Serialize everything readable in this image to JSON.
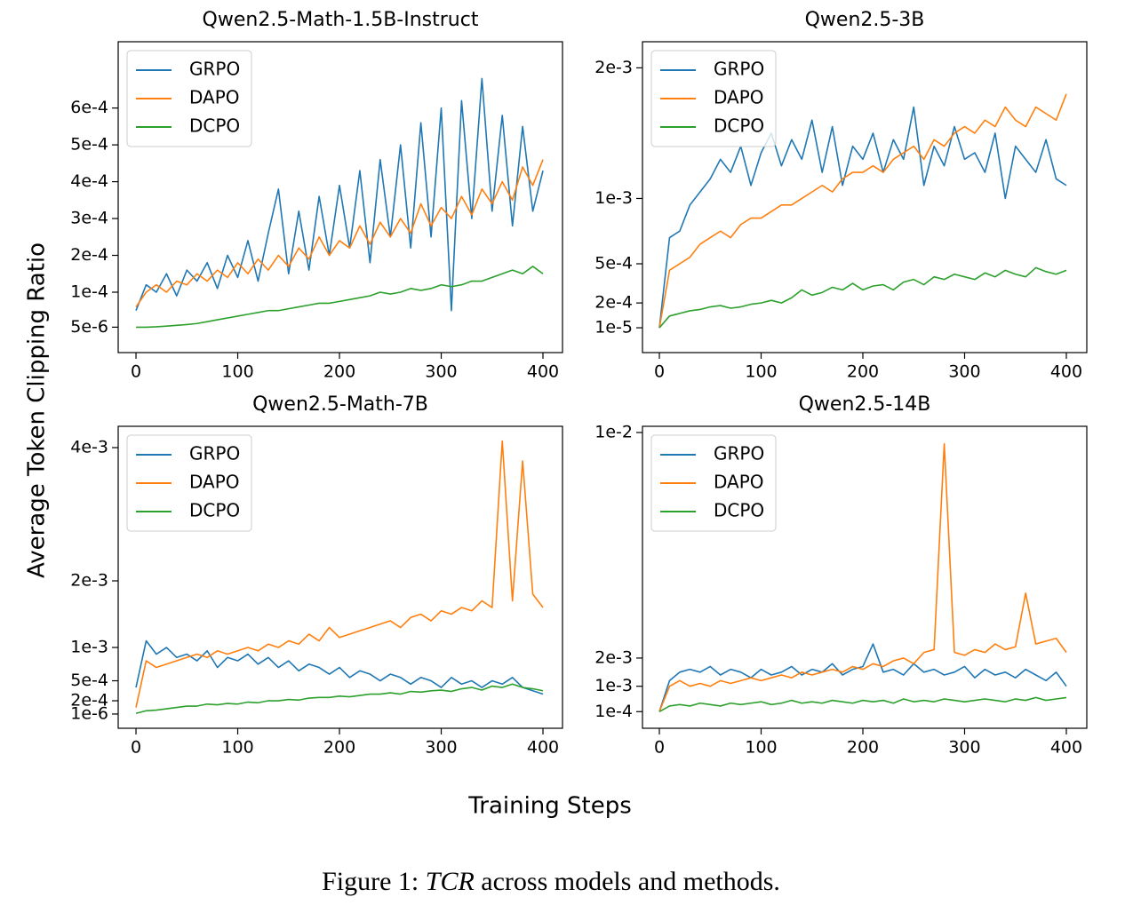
{
  "figure": {
    "ylabel": "Average Token Clipping Ratio",
    "xlabel": "Training Steps",
    "caption": {
      "prefix": "Figure 1:",
      "emph": "TCR",
      "rest": "across models and methods."
    }
  },
  "chart_data": [
    {
      "type": "line",
      "title": "Qwen2.5-Math-1.5B-Instruct",
      "legend": "upper left",
      "xlim": [
        -17.5,
        419.2
      ],
      "xticks": [
        0,
        100,
        200,
        300,
        400
      ],
      "ylim": [
        -6.4e-05,
        0.00078
      ],
      "yticks": [
        {
          "value": 5e-06,
          "label": "5e-6"
        },
        {
          "value": 0.0001,
          "label": "1e-4"
        },
        {
          "value": 0.0002,
          "label": "2e-4"
        },
        {
          "value": 0.0003,
          "label": "3e-4"
        },
        {
          "value": 0.0004,
          "label": "4e-4"
        },
        {
          "value": 0.0005,
          "label": "5e-4"
        },
        {
          "value": 0.0006,
          "label": "6e-4"
        }
      ],
      "x": [
        0,
        10,
        20,
        30,
        40,
        50,
        60,
        70,
        80,
        90,
        100,
        110,
        120,
        130,
        140,
        150,
        160,
        170,
        180,
        190,
        200,
        210,
        220,
        230,
        240,
        250,
        260,
        270,
        280,
        290,
        300,
        310,
        320,
        330,
        340,
        350,
        360,
        370,
        380,
        390,
        400
      ],
      "series": [
        {
          "name": "GRPO",
          "color": "#1f77b4",
          "values": [
            5e-05,
            0.00012,
            0.0001,
            0.00015,
            9e-05,
            0.00016,
            0.00013,
            0.00018,
            0.00011,
            0.0002,
            0.00014,
            0.00024,
            0.00013,
            0.00026,
            0.00038,
            0.00015,
            0.00032,
            0.00016,
            0.00036,
            0.0002,
            0.00039,
            0.00022,
            0.00043,
            0.00018,
            0.00046,
            0.00025,
            0.0005,
            0.00022,
            0.00056,
            0.00025,
            0.0006,
            5e-05,
            0.00062,
            0.0003,
            0.00068,
            0.00032,
            0.00058,
            0.00028,
            0.00055,
            0.00032,
            0.00043
          ]
        },
        {
          "name": "DAPO",
          "color": "#ff7f0e",
          "values": [
            6e-05,
            0.0001,
            0.00012,
            0.0001,
            0.00013,
            0.00012,
            0.00015,
            0.00013,
            0.00016,
            0.00014,
            0.00018,
            0.00015,
            0.00019,
            0.00016,
            0.0002,
            0.00017,
            0.00022,
            0.00019,
            0.00025,
            0.0002,
            0.00024,
            0.00022,
            0.00028,
            0.00023,
            0.00029,
            0.00025,
            0.0003,
            0.00026,
            0.00034,
            0.00028,
            0.00033,
            0.0003,
            0.00036,
            0.00031,
            0.00038,
            0.00034,
            0.0004,
            0.00035,
            0.00044,
            0.00039,
            0.00046
          ]
        },
        {
          "name": "DCPO",
          "color": "#2ca02c",
          "values": [
            5e-06,
            5e-06,
            6e-06,
            8e-06,
            1e-05,
            1.2e-05,
            1.5e-05,
            2e-05,
            2.5e-05,
            3e-05,
            3.5e-05,
            4e-05,
            4.5e-05,
            5e-05,
            5e-05,
            5.5e-05,
            6e-05,
            6.5e-05,
            7e-05,
            7e-05,
            7.5e-05,
            8e-05,
            8.5e-05,
            9e-05,
            0.0001,
            9.5e-05,
            0.0001,
            0.00011,
            0.000105,
            0.00011,
            0.00012,
            0.000115,
            0.00012,
            0.00013,
            0.00013,
            0.00014,
            0.00015,
            0.00016,
            0.00015,
            0.00017,
            0.00015
          ]
        }
      ]
    },
    {
      "type": "line",
      "title": "Qwen2.5-3B",
      "legend": "upper left",
      "xlim": [
        -16.6,
        420.1
      ],
      "xticks": [
        0,
        100,
        200,
        300,
        400
      ],
      "ylim": [
        -0.00018,
        0.0022
      ],
      "yticks": [
        {
          "value": 1e-05,
          "label": "1e-5"
        },
        {
          "value": 0.0002,
          "label": "2e-4"
        },
        {
          "value": 0.0005,
          "label": "5e-4"
        },
        {
          "value": 0.001,
          "label": "1e-3"
        },
        {
          "value": 0.002,
          "label": "2e-3"
        }
      ],
      "x": [
        0,
        10,
        20,
        30,
        40,
        50,
        60,
        70,
        80,
        90,
        100,
        110,
        120,
        130,
        140,
        150,
        160,
        170,
        180,
        190,
        200,
        210,
        220,
        230,
        240,
        250,
        260,
        270,
        280,
        290,
        300,
        310,
        320,
        330,
        340,
        350,
        360,
        370,
        380,
        390,
        400
      ],
      "series": [
        {
          "name": "GRPO",
          "color": "#1f77b4",
          "values": [
            1e-05,
            0.0007,
            0.00075,
            0.00095,
            0.00105,
            0.00115,
            0.0013,
            0.0012,
            0.0014,
            0.0011,
            0.00135,
            0.0015,
            0.00125,
            0.00145,
            0.0013,
            0.0016,
            0.0012,
            0.00155,
            0.0011,
            0.0014,
            0.0013,
            0.0015,
            0.0012,
            0.00145,
            0.0013,
            0.0017,
            0.0011,
            0.0014,
            0.00125,
            0.00155,
            0.0013,
            0.00135,
            0.0012,
            0.0015,
            0.001,
            0.0014,
            0.0013,
            0.0012,
            0.00145,
            0.00115,
            0.0011
          ]
        },
        {
          "name": "DAPO",
          "color": "#ff7f0e",
          "values": [
            1e-05,
            0.00045,
            0.0005,
            0.00055,
            0.00065,
            0.0007,
            0.00075,
            0.0007,
            0.0008,
            0.00085,
            0.00085,
            0.0009,
            0.00095,
            0.00095,
            0.001,
            0.00105,
            0.0011,
            0.00105,
            0.00115,
            0.0012,
            0.0012,
            0.00125,
            0.0012,
            0.0013,
            0.00135,
            0.0014,
            0.0013,
            0.00145,
            0.0014,
            0.0015,
            0.00155,
            0.0015,
            0.0016,
            0.00155,
            0.0017,
            0.0016,
            0.00155,
            0.0017,
            0.00165,
            0.0016,
            0.0018
          ]
        },
        {
          "name": "DCPO",
          "color": "#2ca02c",
          "values": [
            1e-05,
            0.0001,
            0.00012,
            0.00014,
            0.00015,
            0.00017,
            0.00018,
            0.00016,
            0.00017,
            0.00019,
            0.0002,
            0.00022,
            0.0002,
            0.00024,
            0.0003,
            0.00026,
            0.00028,
            0.00032,
            0.0003,
            0.00035,
            0.0003,
            0.00033,
            0.00034,
            0.0003,
            0.00036,
            0.00038,
            0.00034,
            0.0004,
            0.00038,
            0.00042,
            0.0004,
            0.00038,
            0.00043,
            0.0004,
            0.00045,
            0.00042,
            0.0004,
            0.00047,
            0.00044,
            0.00042,
            0.00045
          ]
        }
      ]
    },
    {
      "type": "line",
      "title": "Qwen2.5-Math-7B",
      "legend": "upper left",
      "xlim": [
        -17.5,
        419.2
      ],
      "xticks": [
        0,
        100,
        200,
        300,
        400
      ],
      "ylim": [
        -0.000213,
        0.00432
      ],
      "yticks": [
        {
          "value": 1e-06,
          "label": "1e-6"
        },
        {
          "value": 0.0002,
          "label": "2e-4"
        },
        {
          "value": 0.0005,
          "label": "5e-4"
        },
        {
          "value": 0.001,
          "label": "1e-3"
        },
        {
          "value": 0.002,
          "label": "2e-3"
        },
        {
          "value": 0.004,
          "label": "4e-3"
        }
      ],
      "x": [
        0,
        10,
        20,
        30,
        40,
        50,
        60,
        70,
        80,
        90,
        100,
        110,
        120,
        130,
        140,
        150,
        160,
        170,
        180,
        190,
        200,
        210,
        220,
        230,
        240,
        250,
        260,
        270,
        280,
        290,
        300,
        310,
        320,
        330,
        340,
        350,
        360,
        370,
        380,
        390,
        400
      ],
      "series": [
        {
          "name": "GRPO",
          "color": "#1f77b4",
          "values": [
            0.0004,
            0.0011,
            0.0009,
            0.001,
            0.00085,
            0.0009,
            0.0008,
            0.00095,
            0.0007,
            0.00085,
            0.0008,
            0.0009,
            0.00075,
            0.00085,
            0.0007,
            0.0008,
            0.00065,
            0.00075,
            0.0007,
            0.0006,
            0.0007,
            0.00055,
            0.00065,
            0.0006,
            0.0005,
            0.0006,
            0.00055,
            0.00045,
            0.00055,
            0.0005,
            0.0004,
            0.00055,
            0.00045,
            0.0005,
            0.0004,
            0.0005,
            0.00045,
            0.00055,
            0.0004,
            0.00035,
            0.0003
          ]
        },
        {
          "name": "DAPO",
          "color": "#ff7f0e",
          "values": [
            0.0001,
            0.0008,
            0.0007,
            0.00075,
            0.0008,
            0.00085,
            0.0009,
            0.00085,
            0.00095,
            0.0009,
            0.00095,
            0.001,
            0.00095,
            0.00105,
            0.001,
            0.0011,
            0.00105,
            0.0012,
            0.0011,
            0.0013,
            0.00115,
            0.0012,
            0.00125,
            0.0013,
            0.00135,
            0.0014,
            0.0013,
            0.00145,
            0.0015,
            0.0014,
            0.00155,
            0.0015,
            0.0016,
            0.00155,
            0.0017,
            0.0016,
            0.0041,
            0.0017,
            0.0038,
            0.0018,
            0.0016
          ]
        },
        {
          "name": "DCPO",
          "color": "#2ca02c",
          "values": [
            1e-05,
            5e-05,
            6e-05,
            8e-05,
            0.0001,
            0.00012,
            0.00012,
            0.00015,
            0.00014,
            0.00016,
            0.00015,
            0.00018,
            0.00017,
            0.0002,
            0.0002,
            0.00022,
            0.00021,
            0.00024,
            0.00025,
            0.00025,
            0.00027,
            0.00026,
            0.00028,
            0.0003,
            0.0003,
            0.00032,
            0.0003,
            0.00034,
            0.00033,
            0.00035,
            0.00036,
            0.00034,
            0.00038,
            0.0004,
            0.00036,
            0.00042,
            0.0004,
            0.00045,
            0.0004,
            0.00038,
            0.00035
          ]
        }
      ]
    },
    {
      "type": "line",
      "title": "Qwen2.5-14B",
      "legend": "upper left",
      "xlim": [
        -16.6,
        420.1
      ],
      "xticks": [
        0,
        100,
        200,
        300,
        400
      ],
      "ylim": [
        -0.00049,
        0.01022
      ],
      "yticks": [
        {
          "value": 0.0001,
          "label": "1e-4"
        },
        {
          "value": 0.001,
          "label": "1e-3"
        },
        {
          "value": 0.002,
          "label": "2e-3"
        },
        {
          "value": 0.01,
          "label": "1e-2"
        }
      ],
      "x": [
        0,
        10,
        20,
        30,
        40,
        50,
        60,
        70,
        80,
        90,
        100,
        110,
        120,
        130,
        140,
        150,
        160,
        170,
        180,
        190,
        200,
        210,
        220,
        230,
        240,
        250,
        260,
        270,
        280,
        290,
        300,
        310,
        320,
        330,
        340,
        350,
        360,
        370,
        380,
        390,
        400
      ],
      "series": [
        {
          "name": "GRPO",
          "color": "#1f77b4",
          "values": [
            0.0001,
            0.0012,
            0.0015,
            0.0016,
            0.0015,
            0.0017,
            0.0014,
            0.0016,
            0.0015,
            0.0013,
            0.0016,
            0.0014,
            0.0015,
            0.0017,
            0.0014,
            0.0016,
            0.0015,
            0.0018,
            0.0014,
            0.0016,
            0.0017,
            0.0025,
            0.0015,
            0.0016,
            0.0014,
            0.0018,
            0.0015,
            0.0016,
            0.0014,
            0.0015,
            0.0017,
            0.0013,
            0.0016,
            0.0014,
            0.0015,
            0.0013,
            0.0016,
            0.0014,
            0.0012,
            0.0015,
            0.001
          ]
        },
        {
          "name": "DAPO",
          "color": "#ff7f0e",
          "values": [
            0.0001,
            0.001,
            0.0012,
            0.001,
            0.0011,
            0.001,
            0.0012,
            0.0011,
            0.0012,
            0.0013,
            0.0012,
            0.0013,
            0.0014,
            0.0013,
            0.0015,
            0.0014,
            0.0015,
            0.0016,
            0.0015,
            0.0017,
            0.0016,
            0.0018,
            0.0017,
            0.0019,
            0.002,
            0.0018,
            0.0022,
            0.0023,
            0.0096,
            0.0022,
            0.0021,
            0.0023,
            0.0022,
            0.0025,
            0.0023,
            0.0024,
            0.0043,
            0.0025,
            0.0026,
            0.0027,
            0.0022
          ]
        },
        {
          "name": "DCPO",
          "color": "#2ca02c",
          "values": [
            0.0001,
            0.0003,
            0.00035,
            0.0003,
            0.0004,
            0.00035,
            0.0003,
            0.0004,
            0.00035,
            0.0004,
            0.00045,
            0.00035,
            0.0004,
            0.0005,
            0.0004,
            0.00045,
            0.0004,
            0.0005,
            0.00045,
            0.0004,
            0.0005,
            0.00045,
            0.0005,
            0.0004,
            0.00055,
            0.00045,
            0.0005,
            0.00045,
            0.00055,
            0.0005,
            0.00045,
            0.0005,
            0.00055,
            0.0005,
            0.00045,
            0.00055,
            0.0005,
            0.0006,
            0.0005,
            0.00055,
            0.0006
          ]
        }
      ]
    }
  ]
}
